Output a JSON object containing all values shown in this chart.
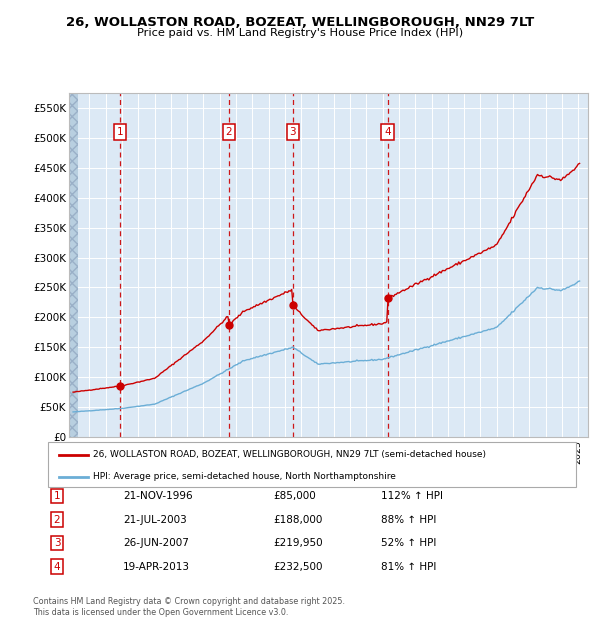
{
  "title": "26, WOLLASTON ROAD, BOZEAT, WELLINGBOROUGH, NN29 7LT",
  "subtitle": "Price paid vs. HM Land Registry's House Price Index (HPI)",
  "legend_line1": "26, WOLLASTON ROAD, BOZEAT, WELLINGBOROUGH, NN29 7LT (semi-detached house)",
  "legend_line2": "HPI: Average price, semi-detached house, North Northamptonshire",
  "footer": "Contains HM Land Registry data © Crown copyright and database right 2025.\nThis data is licensed under the Open Government Licence v3.0.",
  "sale_dates_iso": [
    "1996-11-21",
    "2003-07-21",
    "2007-06-26",
    "2013-04-19"
  ],
  "sale_prices": [
    85000,
    188000,
    219950,
    232500
  ],
  "sale_labels": [
    "1",
    "2",
    "3",
    "4"
  ],
  "sale_pct": [
    "112% ↑ HPI",
    "88% ↑ HPI",
    "52% ↑ HPI",
    "81% ↑ HPI"
  ],
  "sale_display_dates": [
    "21-NOV-1996",
    "21-JUL-2003",
    "26-JUN-2007",
    "19-APR-2013"
  ],
  "sale_display_prices": [
    "£85,000",
    "£188,000",
    "£219,950",
    "£232,500"
  ],
  "hpi_color": "#6baed6",
  "price_color": "#cc0000",
  "bg_color": "#dce9f5",
  "ylim_max": 575000,
  "yticks": [
    0,
    50000,
    100000,
    150000,
    200000,
    250000,
    300000,
    350000,
    400000,
    450000,
    500000,
    550000
  ],
  "hpi_anchors_t": [
    1994.0,
    1997.0,
    1999.0,
    2002.0,
    2004.5,
    2007.5,
    2009.0,
    2012.0,
    2013.0,
    2016.0,
    2020.0,
    2022.5,
    2024.0,
    2025.1
  ],
  "hpi_anchors_v": [
    42000,
    48000,
    55000,
    90000,
    128000,
    150000,
    122000,
    128000,
    130000,
    153000,
    183000,
    250000,
    245000,
    260000
  ]
}
